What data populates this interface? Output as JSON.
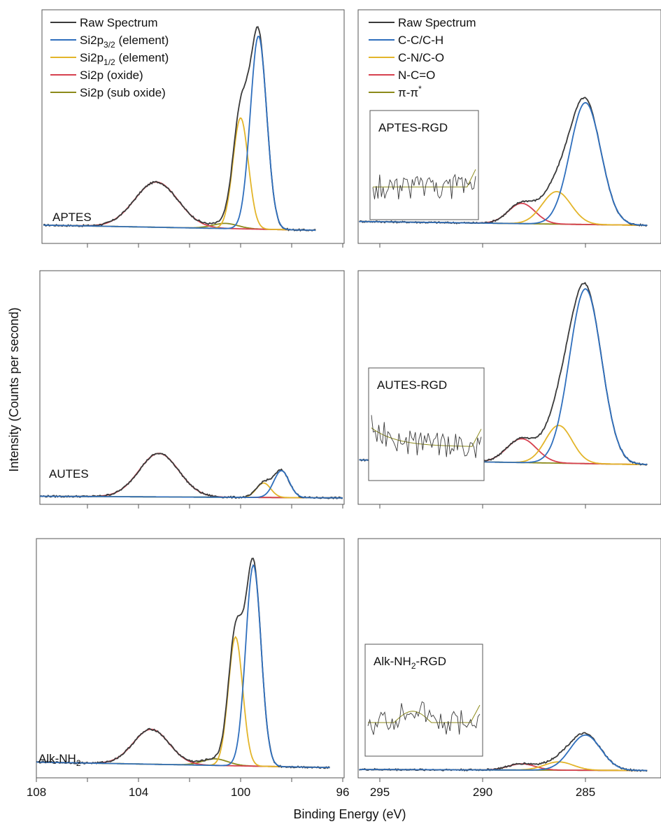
{
  "figure": {
    "ylabel": "Intensity (Counts per second)",
    "xlabel": "Binding Energy (eV)"
  },
  "colors": {
    "raw": "#3a3a3a",
    "blue": "#2f6fbd",
    "yellow": "#e3b52a",
    "red": "#d6404f",
    "olive": "#8c8a1a",
    "frame": "#555555"
  },
  "legends": {
    "si": [
      {
        "label": "Raw Spectrum",
        "color_key": "raw"
      },
      {
        "label": "Si2p",
        "sub": "3/2",
        "tail": " (element)",
        "color_key": "blue"
      },
      {
        "label": "Si2p",
        "sub": "1/2",
        "tail": " (element)",
        "color_key": "yellow"
      },
      {
        "label": "Si2p (oxide)",
        "color_key": "red"
      },
      {
        "label": "Si2p (sub oxide)",
        "color_key": "olive"
      }
    ],
    "c": [
      {
        "label": "Raw Spectrum",
        "color_key": "raw"
      },
      {
        "label": "C-C/C-H",
        "color_key": "blue"
      },
      {
        "label": "C-N/C-O",
        "color_key": "yellow"
      },
      {
        "label": "N-C=O",
        "color_key": "red"
      },
      {
        "label": "π-π",
        "sup": "*",
        "color_key": "olive"
      }
    ]
  },
  "chart_data": [
    {
      "type": "line",
      "region": "Si2p",
      "sample_label": "APTES",
      "xlim": [
        108,
        96
      ],
      "xticks": [
        108,
        104,
        100,
        96
      ],
      "tick_labels_shown": false,
      "baseline": {
        "start": 0.055,
        "end": 0.03
      },
      "components": [
        {
          "key": "blue",
          "center": 99.3,
          "amp": 0.94,
          "width": 0.32
        },
        {
          "key": "yellow",
          "center": 100.0,
          "amp": 0.54,
          "width": 0.3
        },
        {
          "key": "red",
          "center": 103.3,
          "amp": 0.22,
          "width": 0.85
        },
        {
          "key": "olive",
          "center": 100.6,
          "amp": 0.025,
          "width": 0.5
        }
      ]
    },
    {
      "type": "line",
      "region": "C1s",
      "sample_label": "APTES-RGD",
      "inset_label": "APTES-RGD",
      "xlim": [
        296,
        282
      ],
      "xticks": [
        295,
        290,
        285
      ],
      "tick_labels_shown": false,
      "baseline": {
        "start": 0.06,
        "end": 0.04
      },
      "components": [
        {
          "key": "blue",
          "center": 285.0,
          "amp": 0.6,
          "width": 0.75
        },
        {
          "key": "yellow",
          "center": 286.4,
          "amp": 0.16,
          "width": 0.7
        },
        {
          "key": "red",
          "center": 288.1,
          "amp": 0.1,
          "width": 0.65
        },
        {
          "key": "olive",
          "center": 291.0,
          "amp": 0.0,
          "width": 1.0
        }
      ]
    },
    {
      "type": "line",
      "region": "Si2p",
      "sample_label": "AUTES",
      "xlim": [
        108,
        96
      ],
      "xticks": [
        108,
        104,
        100,
        96
      ],
      "tick_labels_shown": false,
      "baseline": {
        "start": 0.012,
        "end": 0.004
      },
      "components": [
        {
          "key": "blue",
          "center": 98.4,
          "amp": 0.13,
          "width": 0.3
        },
        {
          "key": "yellow",
          "center": 99.1,
          "amp": 0.07,
          "width": 0.28
        },
        {
          "key": "red",
          "center": 103.2,
          "amp": 0.21,
          "width": 0.78
        },
        {
          "key": "olive",
          "center": 100.0,
          "amp": 0.0,
          "width": 0.5
        }
      ]
    },
    {
      "type": "line",
      "region": "C1s",
      "sample_label": "AUTES-RGD",
      "inset_label": "AUTES-RGD",
      "xlim": [
        296,
        282
      ],
      "xticks": [
        295,
        290,
        285
      ],
      "tick_labels_shown": false,
      "baseline": {
        "start": 0.09,
        "end": 0.065
      },
      "components": [
        {
          "key": "blue",
          "center": 285.0,
          "amp": 0.88,
          "width": 0.78
        },
        {
          "key": "yellow",
          "center": 286.3,
          "amp": 0.19,
          "width": 0.65
        },
        {
          "key": "red",
          "center": 288.1,
          "amp": 0.12,
          "width": 0.72
        },
        {
          "key": "olive",
          "center": 291.0,
          "amp": 0.0,
          "width": 1.0
        }
      ]
    },
    {
      "type": "line",
      "region": "Si2p",
      "sample_label": "Alk-NH",
      "sample_label_sub": "2",
      "xlim": [
        108,
        96
      ],
      "xticks": [
        108,
        104,
        100,
        96
      ],
      "tick_labels_shown": true,
      "baseline": {
        "start": 0.04,
        "end": 0.015
      },
      "components": [
        {
          "key": "blue",
          "center": 99.5,
          "amp": 0.92,
          "width": 0.3
        },
        {
          "key": "yellow",
          "center": 100.2,
          "amp": 0.59,
          "width": 0.28
        },
        {
          "key": "red",
          "center": 103.5,
          "amp": 0.16,
          "width": 0.7
        },
        {
          "key": "olive",
          "center": 101.0,
          "amp": 0.03,
          "width": 0.5
        }
      ]
    },
    {
      "type": "line",
      "region": "C1s",
      "sample_label": "Alk-NH-RGD",
      "inset_label": "Alk-NH",
      "inset_label_sub": "2",
      "inset_label_tail": "-RGD",
      "xlim": [
        296,
        282
      ],
      "xticks": [
        295,
        290,
        285
      ],
      "tick_labels_shown": true,
      "baseline": {
        "start": 0.02,
        "end": 0.015
      },
      "components": [
        {
          "key": "blue",
          "center": 285.0,
          "amp": 0.17,
          "width": 0.75
        },
        {
          "key": "yellow",
          "center": 286.3,
          "amp": 0.04,
          "width": 0.7
        },
        {
          "key": "red",
          "center": 288.1,
          "amp": 0.03,
          "width": 0.65
        },
        {
          "key": "olive",
          "center": 291.0,
          "amp": 0.0,
          "width": 1.0
        }
      ]
    }
  ]
}
